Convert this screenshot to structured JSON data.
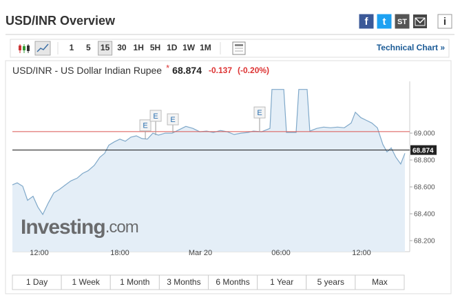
{
  "header": {
    "title": "USD/INR Overview",
    "icons": [
      "f",
      "t",
      "ST",
      "i"
    ]
  },
  "toolbar": {
    "intervals": [
      "1",
      "5",
      "15",
      "30",
      "1H",
      "5H",
      "1D",
      "1W",
      "1M"
    ],
    "active_interval": "15",
    "link": "Technical Chart »"
  },
  "quote": {
    "name": "USD/INR - US Dollar Indian Rupee",
    "marker": "*",
    "price": 68.874,
    "change": -0.137,
    "change_percent": "(-0.20%)"
  },
  "watermark": {
    "brand": "Investing",
    "suffix": ".com"
  },
  "chart_data": {
    "type": "area",
    "color": "#7fa8c9",
    "fill": "#e4eef7",
    "x": [
      10.0,
      10.36,
      10.77,
      11.13,
      11.54,
      11.9,
      12.26,
      12.67,
      13.08,
      13.49,
      13.95,
      14.36,
      14.82,
      15.23,
      15.64,
      16.1,
      16.51,
      16.87,
      17.18,
      17.59,
      18.0,
      18.41,
      18.82,
      19.23,
      19.64,
      20.05,
      20.46,
      20.87,
      21.38,
      21.9,
      22.41,
      22.92,
      23.44,
      23.95,
      24.46,
      24.97,
      25.49,
      26.0,
      26.51,
      27.03,
      27.54,
      27.95,
      28.56,
      29.18,
      29.33,
      30.21,
      30.41,
      31.13,
      31.33,
      31.95,
      32.15,
      32.67,
      33.18,
      33.69,
      34.21,
      34.72,
      35.23,
      35.54,
      35.95,
      36.36,
      36.77,
      37.18,
      37.59,
      37.9,
      38.21,
      38.56,
      38.92,
      39.23
    ],
    "values": [
      68.615,
      68.63,
      68.605,
      68.5,
      68.53,
      68.45,
      68.395,
      68.48,
      68.555,
      68.58,
      68.615,
      68.645,
      68.665,
      68.7,
      68.72,
      68.76,
      68.82,
      68.85,
      68.91,
      68.935,
      68.955,
      68.94,
      68.97,
      68.98,
      68.96,
      68.955,
      69.0,
      68.985,
      69.0,
      69.0,
      69.025,
      69.05,
      69.035,
      69.01,
      69.015,
      69.005,
      69.02,
      69.01,
      68.99,
      69.0,
      69.005,
      69.015,
      69.01,
      69.035,
      69.325,
      69.325,
      69.005,
      69.005,
      69.325,
      69.325,
      69.015,
      69.035,
      69.045,
      69.04,
      69.045,
      69.04,
      69.075,
      69.155,
      69.115,
      69.095,
      69.075,
      69.04,
      68.915,
      68.86,
      68.89,
      68.82,
      68.77,
      68.85
    ],
    "xlim": [
      10,
      39.59
    ],
    "ylim": [
      68.118,
      69.385
    ],
    "xticks": [
      {
        "value": 12,
        "label": "12:00"
      },
      {
        "value": 18,
        "label": "18:00"
      },
      {
        "value": 24,
        "label": "Mar 20"
      },
      {
        "value": 30,
        "label": "06:00"
      },
      {
        "value": 36,
        "label": "12:00"
      }
    ],
    "yticks": [
      {
        "value": 68.2,
        "label": "68.200"
      },
      {
        "value": 68.4,
        "label": "68.400"
      },
      {
        "value": 68.6,
        "label": "68.600"
      },
      {
        "value": 68.8,
        "label": "68.800"
      },
      {
        "value": 69,
        "label": "69.000"
      }
    ],
    "reference_line": 69.011,
    "reference_color": "#d9534f",
    "events": [
      {
        "x": 19.9,
        "label": "E"
      },
      {
        "x": 20.67,
        "label": "E"
      },
      {
        "x": 21.95,
        "label": "E"
      },
      {
        "x": 28.41,
        "label": "E"
      }
    ]
  },
  "ranges": [
    "1 Day",
    "1 Week",
    "1 Month",
    "3 Months",
    "6 Months",
    "1 Year",
    "5 years",
    "Max"
  ]
}
